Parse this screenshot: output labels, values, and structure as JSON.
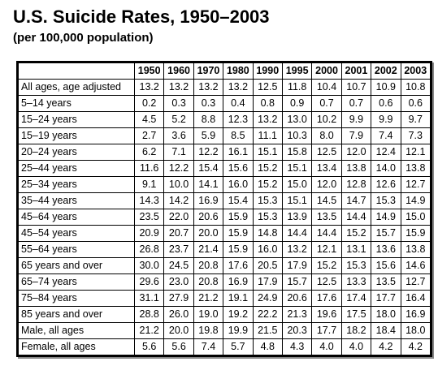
{
  "title": "U.S. Suicide Rates, 1950–2003",
  "subtitle": "(per 100,000 population)",
  "table": {
    "corner": "",
    "columns": [
      "1950",
      "1960",
      "1970",
      "1980",
      "1990",
      "1995",
      "2000",
      "2001",
      "2002",
      "2003"
    ],
    "rows": [
      {
        "label": "All ages, age adjusted",
        "values": [
          "13.2",
          "13.2",
          "13.2",
          "13.2",
          "12.5",
          "11.8",
          "10.4",
          "10.7",
          "10.9",
          "10.8"
        ]
      },
      {
        "label": "5–14 years",
        "values": [
          "0.2",
          "0.3",
          "0.3",
          "0.4",
          "0.8",
          "0.9",
          "0.7",
          "0.7",
          "0.6",
          "0.6"
        ]
      },
      {
        "label": "15–24 years",
        "values": [
          "4.5",
          "5.2",
          "8.8",
          "12.3",
          "13.2",
          "13.0",
          "10.2",
          "9.9",
          "9.9",
          "9.7"
        ]
      },
      {
        "label": "15–19 years",
        "values": [
          "2.7",
          "3.6",
          "5.9",
          "8.5",
          "11.1",
          "10.3",
          "8.0",
          "7.9",
          "7.4",
          "7.3"
        ]
      },
      {
        "label": "20–24 years",
        "values": [
          "6.2",
          "7.1",
          "12.2",
          "16.1",
          "15.1",
          "15.8",
          "12.5",
          "12.0",
          "12.4",
          "12.1"
        ]
      },
      {
        "label": "25–44 years",
        "values": [
          "11.6",
          "12.2",
          "15.4",
          "15.6",
          "15.2",
          "15.1",
          "13.4",
          "13.8",
          "14.0",
          "13.8"
        ]
      },
      {
        "label": "25–34 years",
        "values": [
          "9.1",
          "10.0",
          "14.1",
          "16.0",
          "15.2",
          "15.0",
          "12.0",
          "12.8",
          "12.6",
          "12.7"
        ]
      },
      {
        "label": "35–44 years",
        "values": [
          "14.3",
          "14.2",
          "16.9",
          "15.4",
          "15.3",
          "15.1",
          "14.5",
          "14.7",
          "15.3",
          "14.9"
        ]
      },
      {
        "label": "45–64 years",
        "values": [
          "23.5",
          "22.0",
          "20.6",
          "15.9",
          "15.3",
          "13.9",
          "13.5",
          "14.4",
          "14.9",
          "15.0"
        ]
      },
      {
        "label": "45–54 years",
        "values": [
          "20.9",
          "20.7",
          "20.0",
          "15.9",
          "14.8",
          "14.4",
          "14.4",
          "15.2",
          "15.7",
          "15.9"
        ]
      },
      {
        "label": "55–64 years",
        "values": [
          "26.8",
          "23.7",
          "21.4",
          "15.9",
          "16.0",
          "13.2",
          "12.1",
          "13.1",
          "13.6",
          "13.8"
        ]
      },
      {
        "label": "65 years and over",
        "values": [
          "30.0",
          "24.5",
          "20.8",
          "17.6",
          "20.5",
          "17.9",
          "15.2",
          "15.3",
          "15.6",
          "14.6"
        ]
      },
      {
        "label": "65–74 years",
        "values": [
          "29.6",
          "23.0",
          "20.8",
          "16.9",
          "17.9",
          "15.7",
          "12.5",
          "13.3",
          "13.5",
          "12.7"
        ]
      },
      {
        "label": "75–84 years",
        "values": [
          "31.1",
          "27.9",
          "21.2",
          "19.1",
          "24.9",
          "20.6",
          "17.6",
          "17.4",
          "17.7",
          "16.4"
        ]
      },
      {
        "label": "85 years and over",
        "values": [
          "28.8",
          "26.0",
          "19.0",
          "19.2",
          "22.2",
          "21.3",
          "19.6",
          "17.5",
          "18.0",
          "16.9"
        ]
      },
      {
        "label": "Male, all ages",
        "values": [
          "21.2",
          "20.0",
          "19.8",
          "19.9",
          "21.5",
          "20.3",
          "17.7",
          "18.2",
          "18.4",
          "18.0"
        ]
      },
      {
        "label": "Female, all ages",
        "values": [
          "5.6",
          "5.6",
          "7.4",
          "5.7",
          "4.8",
          "4.3",
          "4.0",
          "4.0",
          "4.2",
          "4.2"
        ]
      }
    ]
  }
}
